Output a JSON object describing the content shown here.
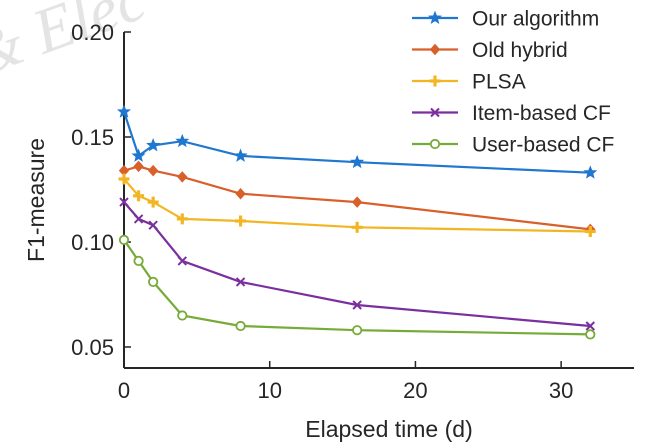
{
  "watermark": "& Elec",
  "chart_data": {
    "type": "line",
    "title": "",
    "xlabel": "Elapsed time (d)",
    "ylabel": "F1-measure",
    "xlim": [
      0,
      35
    ],
    "ylim": [
      0.04,
      0.2
    ],
    "xticks": [
      0,
      10,
      20,
      30
    ],
    "yticks": [
      0.05,
      0.1,
      0.15,
      0.2
    ],
    "xtick_labels": [
      "0",
      "10",
      "20",
      "30"
    ],
    "ytick_labels": [
      "0.05",
      "0.10",
      "0.15",
      "0.20"
    ],
    "grid": false,
    "legend_position": "top-right",
    "x": [
      0,
      1,
      2,
      4,
      8,
      16,
      32
    ],
    "series": [
      {
        "name": "Our algorithm",
        "color": "#1f77d0",
        "marker": "star",
        "values": [
          0.162,
          0.141,
          0.146,
          0.148,
          0.141,
          0.138,
          0.133
        ]
      },
      {
        "name": "Old hybrid",
        "color": "#d95f2b",
        "marker": "diamond",
        "values": [
          0.134,
          0.136,
          0.134,
          0.131,
          0.123,
          0.119,
          0.106
        ]
      },
      {
        "name": "PLSA",
        "color": "#f2b624",
        "marker": "plus",
        "values": [
          0.13,
          0.122,
          0.119,
          0.111,
          0.11,
          0.107,
          0.105
        ]
      },
      {
        "name": "Item-based CF",
        "color": "#7b2f9e",
        "marker": "cross",
        "values": [
          0.119,
          0.111,
          0.108,
          0.091,
          0.081,
          0.07,
          0.06
        ]
      },
      {
        "name": "User-based CF",
        "color": "#76ab3a",
        "marker": "circle",
        "values": [
          0.101,
          0.091,
          0.081,
          0.065,
          0.06,
          0.058,
          0.056
        ]
      }
    ]
  }
}
